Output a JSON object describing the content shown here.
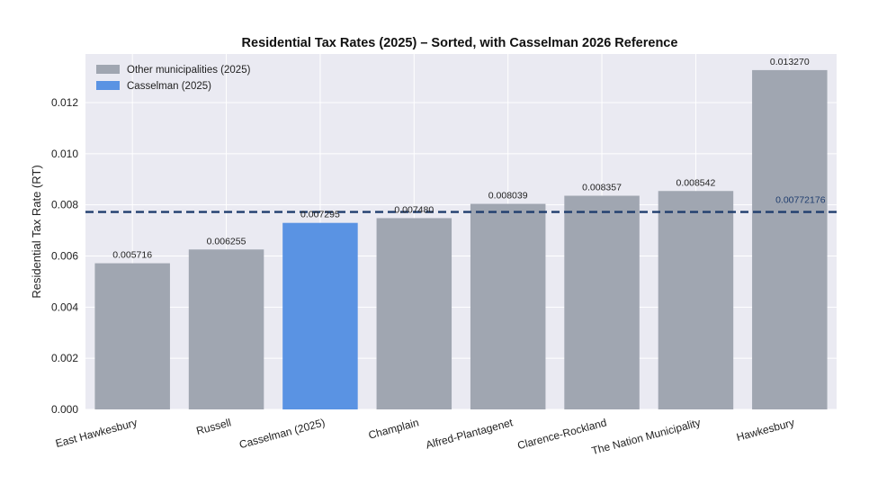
{
  "chart_data": {
    "type": "bar",
    "title": "Residential Tax Rates (2025) – Sorted, with Casselman 2026 Reference",
    "xlabel": "",
    "ylabel": "Residential Tax Rate (RT)",
    "ylim": [
      0,
      0.0139
    ],
    "yticks": [
      "0.000",
      "0.002",
      "0.004",
      "0.006",
      "0.008",
      "0.010",
      "0.012"
    ],
    "grid": true,
    "legend_position": "top-left",
    "categories": [
      "East Hawkesbury",
      "Russell",
      "Casselman (2025)",
      "Champlain",
      "Alfred-Plantagenet",
      "Clarence-Rockland",
      "The Nation Municipality",
      "Hawkesbury"
    ],
    "values": [
      0.005716,
      0.006255,
      0.007295,
      0.00748,
      0.008039,
      0.008357,
      0.008542,
      0.01327
    ],
    "value_labels": [
      "0.005716",
      "0.006255",
      "0.007295",
      "0.007480",
      "0.008039",
      "0.008357",
      "0.008542",
      "0.013270"
    ],
    "highlight_category": "Casselman (2025)",
    "reference_line": {
      "value": 0.00772176,
      "label": "0.00772176",
      "color": "#1f3d6e",
      "style": "dashed"
    },
    "legend": [
      {
        "label": "Other municipalities (2025)",
        "color": "#a0a6b1"
      },
      {
        "label": "Casselman (2025)",
        "color": "#5a93e3"
      }
    ],
    "colors": {
      "other": "#a0a6b1",
      "highlight": "#5a93e3",
      "plot_background": "#eaeaf2",
      "grid": "#ffffff"
    }
  }
}
